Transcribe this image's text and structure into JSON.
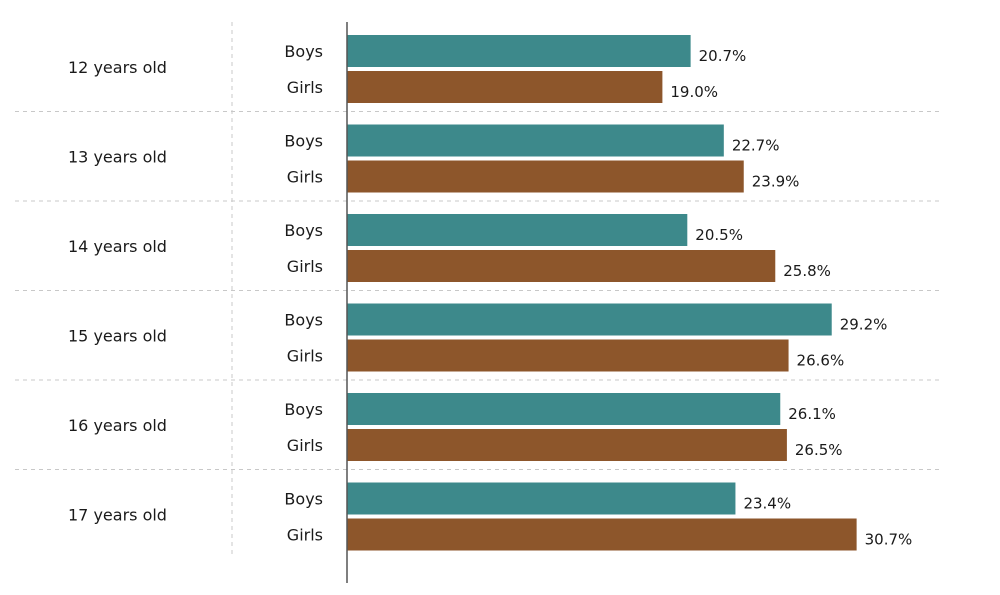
{
  "chart_data": {
    "type": "bar",
    "orientation": "horizontal",
    "title": "",
    "xlabel": "",
    "ylabel": "",
    "xlim": [
      0,
      31
    ],
    "grid": false,
    "legend": "none",
    "categories": [
      "12 years old",
      "13 years old",
      "14 years old",
      "15 years old",
      "16 years old",
      "17 years old"
    ],
    "series": [
      {
        "name": "Boys",
        "color": "#3d898b",
        "values": [
          20.7,
          22.7,
          20.5,
          29.2,
          26.1,
          23.4
        ]
      },
      {
        "name": "Girls",
        "color": "#8d562b",
        "values": [
          19.0,
          23.9,
          25.8,
          26.6,
          26.5,
          30.7
        ]
      }
    ],
    "value_suffix": "%"
  }
}
